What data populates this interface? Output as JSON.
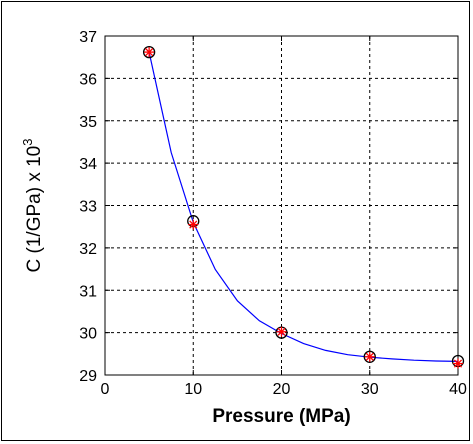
{
  "chart_data": {
    "type": "scatter",
    "title": "",
    "xlabel": "Pressure (MPa)",
    "ylabel_base": "C (1/GPa) x 10",
    "ylabel_exponent": "3",
    "xlim": [
      0,
      40
    ],
    "ylim": [
      29,
      37
    ],
    "xticks": [
      0,
      10,
      20,
      30,
      40
    ],
    "xtick_labels": [
      "0",
      "10",
      "20",
      "30",
      "40"
    ],
    "yticks": [
      29,
      30,
      31,
      32,
      33,
      34,
      35,
      36,
      37
    ],
    "ytick_labels": [
      "29",
      "30",
      "31",
      "32",
      "33",
      "34",
      "35",
      "36",
      "37"
    ],
    "grid": true,
    "series": [
      {
        "marker": "circle",
        "color": "#000000",
        "x": [
          5,
          10,
          20,
          30,
          40
        ],
        "y": [
          36.62,
          32.63,
          30.0,
          29.43,
          29.33
        ]
      },
      {
        "marker": "star",
        "color": "#ff0000",
        "x": [
          5,
          10,
          20,
          30,
          40
        ],
        "y": [
          36.62,
          32.55,
          30.02,
          29.43,
          29.27
        ]
      },
      {
        "line": "fit",
        "color": "#0000ff",
        "x": [
          5,
          7.5,
          10,
          12.5,
          15,
          17.5,
          20,
          22.5,
          25,
          27.5,
          30,
          32.5,
          35,
          37.5,
          40
        ],
        "y": [
          36.62,
          34.25,
          32.6,
          31.49,
          30.75,
          30.28,
          29.98,
          29.74,
          29.58,
          29.48,
          29.42,
          29.38,
          29.35,
          29.33,
          29.32
        ]
      }
    ]
  }
}
